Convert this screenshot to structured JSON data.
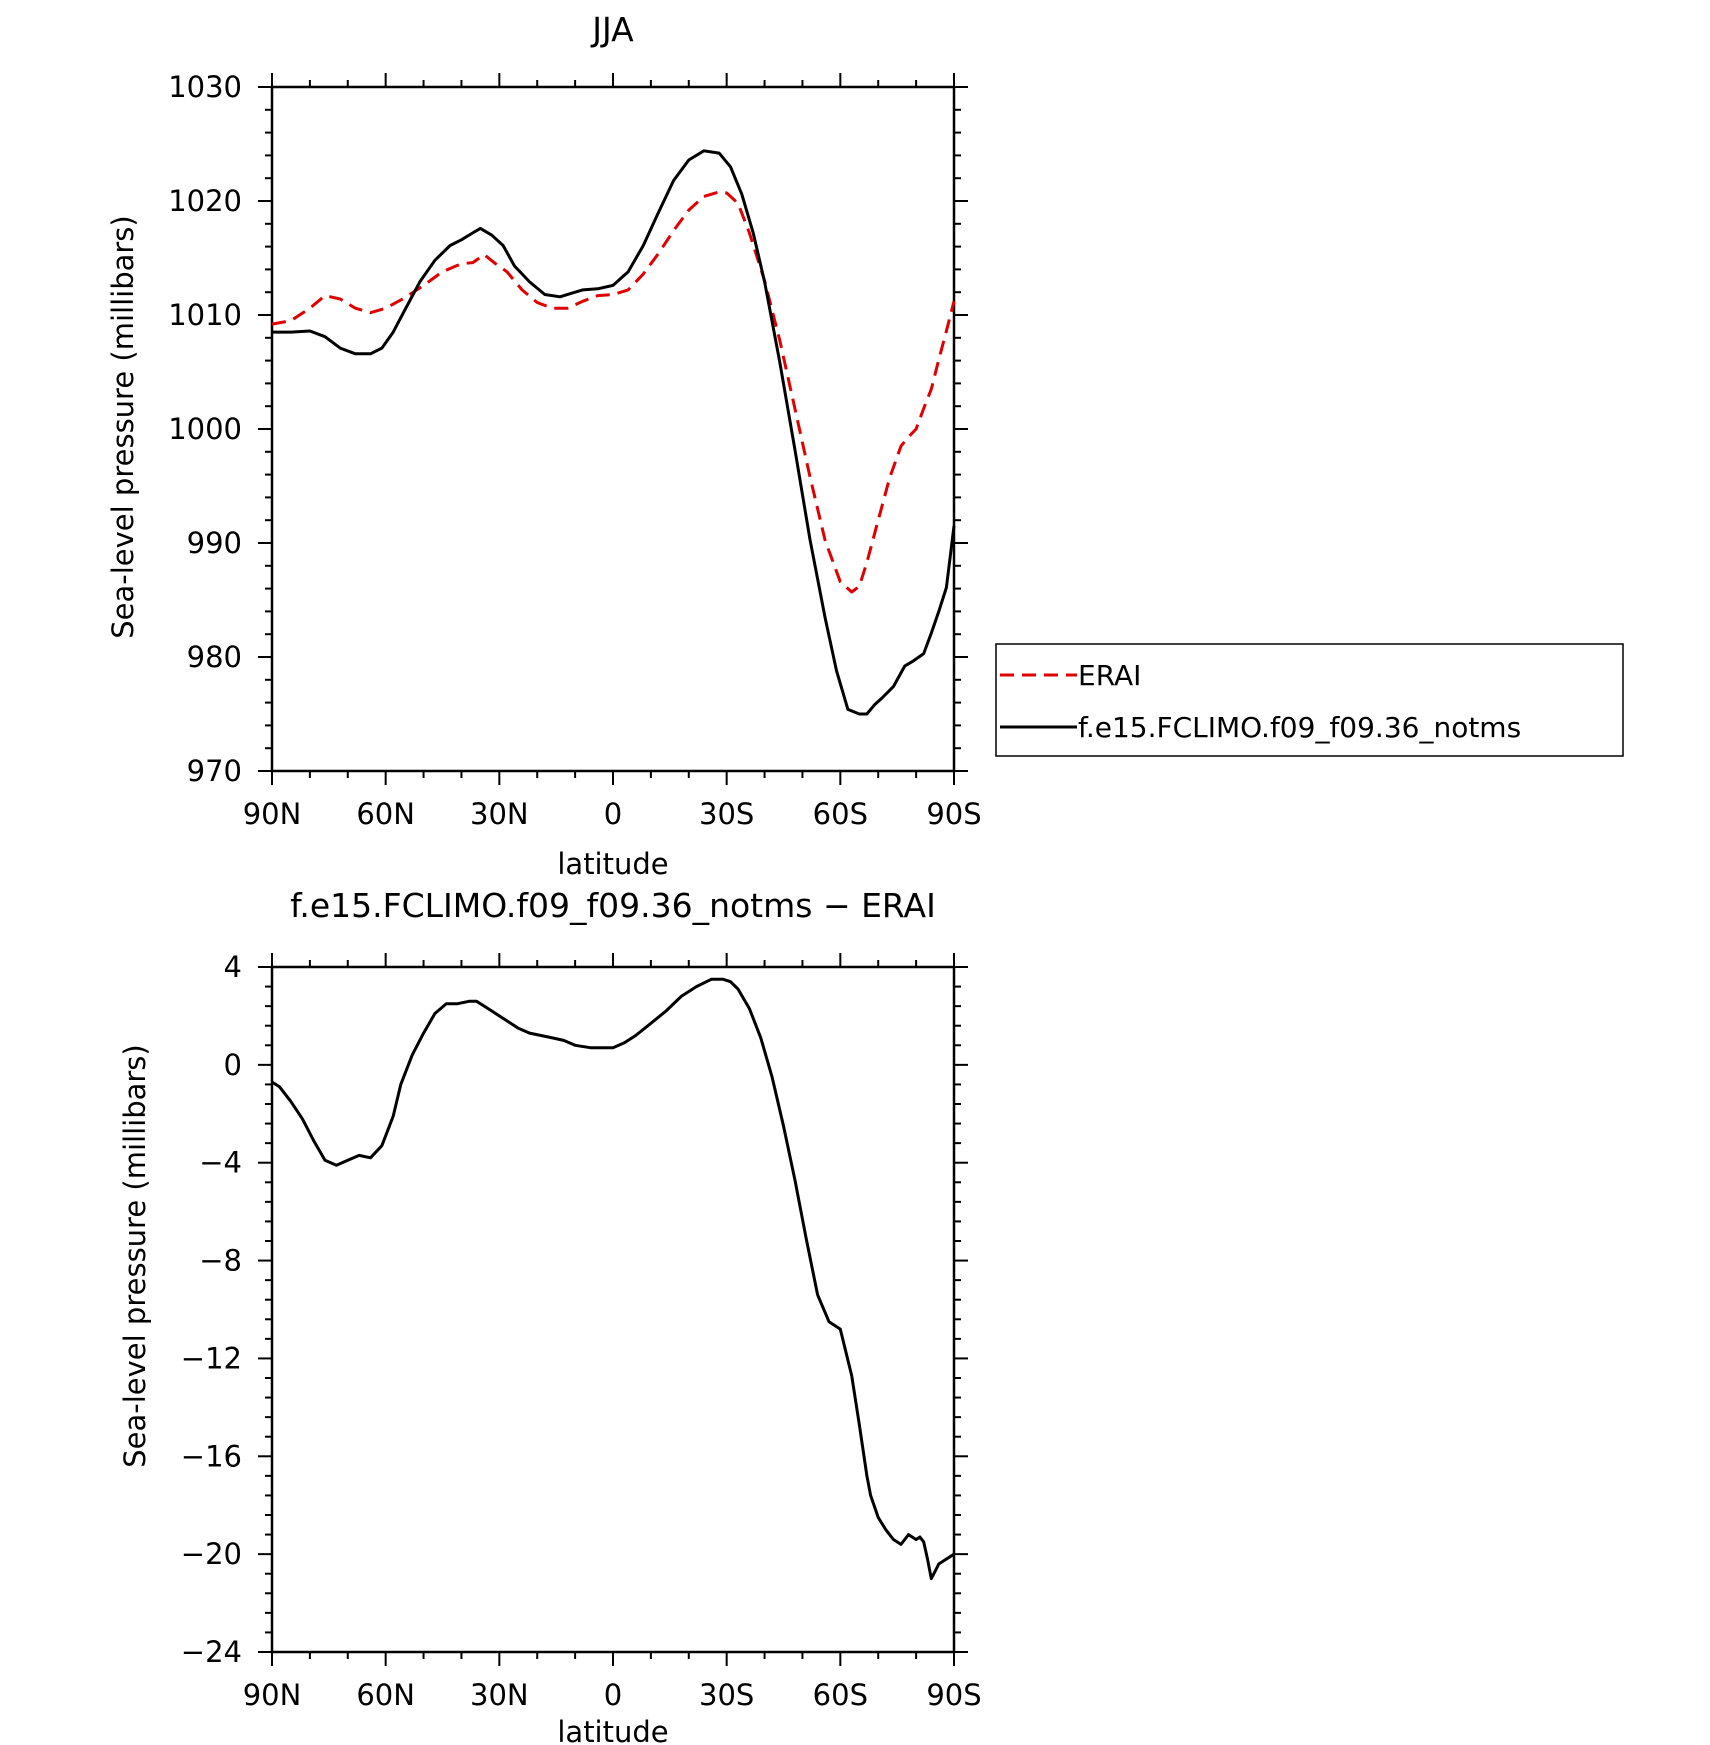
{
  "chart_data": [
    {
      "type": "line",
      "title": "JJA",
      "xlabel": "latitude",
      "ylabel": "Sea-level pressure (millibars)",
      "xlim": [
        90,
        -90
      ],
      "ylim": [
        970,
        1030
      ],
      "xticks": [
        90,
        60,
        30,
        0,
        -30,
        -60,
        -90
      ],
      "xtick_labels": [
        "90N",
        "60N",
        "30N",
        "0",
        "30S",
        "60S",
        "90S"
      ],
      "yticks": [
        970,
        980,
        990,
        1000,
        1010,
        1020,
        1030
      ],
      "ytick_labels": [
        "970",
        "980",
        "990",
        "1000",
        "1010",
        "1020",
        "1030"
      ],
      "legend": "right",
      "series": [
        {
          "name": "ERAI",
          "color": "#e00000",
          "dash": "dashed",
          "x": [
            90,
            85,
            80,
            76,
            72,
            68,
            64,
            60,
            55,
            50,
            45,
            40,
            37,
            34,
            31,
            28,
            24,
            20,
            16,
            12,
            8,
            4,
            0,
            -4,
            -8,
            -12,
            -16,
            -20,
            -24,
            -28,
            -30,
            -33,
            -36,
            -40,
            -44,
            -48,
            -52,
            -56,
            -60,
            -63,
            -65,
            -67,
            -70,
            -73,
            -76,
            -78,
            -80,
            -82,
            -84,
            -86,
            -88,
            -90
          ],
          "y": [
            1009.2,
            1009.5,
            1010.6,
            1011.7,
            1011.4,
            1010.6,
            1010.2,
            1010.6,
            1011.5,
            1012.6,
            1013.8,
            1014.5,
            1014.6,
            1015.3,
            1014.5,
            1013.8,
            1012.2,
            1011.1,
            1010.6,
            1010.6,
            1011.2,
            1011.7,
            1011.8,
            1012.2,
            1013.6,
            1015.4,
            1017.4,
            1019.2,
            1020.4,
            1020.8,
            1020.7,
            1019.8,
            1017.2,
            1013.0,
            1007.8,
            1001.8,
            995.8,
            990.2,
            986.6,
            985.7,
            986.2,
            988.3,
            992.0,
            995.7,
            998.5,
            999.3,
            1000.0,
            1001.8,
            1003.5,
            1006.1,
            1008.6,
            1011.2
          ]
        },
        {
          "name": "f.e15.FCLIMO.f09_f09.36_notms",
          "color": "#000000",
          "dash": "solid",
          "x": [
            90,
            85,
            80,
            76,
            72,
            68,
            64,
            61,
            58,
            55,
            51,
            47,
            43,
            40,
            37,
            35,
            32,
            29,
            26,
            22,
            18,
            14,
            11,
            8,
            4,
            0,
            -4,
            -8,
            -12,
            -16,
            -20,
            -24,
            -28,
            -31,
            -34,
            -37,
            -40,
            -44,
            -48,
            -52,
            -56,
            -59,
            -62,
            -65,
            -67,
            -69,
            -71,
            -74,
            -77,
            -79,
            -82,
            -84,
            -86,
            -88,
            -90
          ],
          "y": [
            1008.5,
            1008.5,
            1008.6,
            1008.1,
            1007.1,
            1006.6,
            1006.6,
            1007.1,
            1008.5,
            1010.4,
            1012.9,
            1014.8,
            1016.1,
            1016.6,
            1017.2,
            1017.6,
            1017.0,
            1016.1,
            1014.3,
            1012.9,
            1011.8,
            1011.6,
            1011.9,
            1012.2,
            1012.3,
            1012.6,
            1013.8,
            1016.1,
            1019.0,
            1021.8,
            1023.6,
            1024.4,
            1024.2,
            1023.0,
            1020.6,
            1017.2,
            1012.9,
            1005.9,
            998.2,
            990.3,
            983.4,
            978.8,
            975.4,
            975.0,
            975.0,
            975.8,
            976.4,
            977.4,
            979.2,
            979.6,
            980.3,
            982.1,
            984.0,
            986.1,
            991.5
          ]
        }
      ]
    },
    {
      "type": "line",
      "title": "f.e15.FCLIMO.f09_f09.36_notms − ERAI",
      "xlabel": "latitude",
      "ylabel": "Sea-level pressure (millibars)",
      "xlim": [
        90,
        -90
      ],
      "ylim": [
        -24,
        4
      ],
      "xticks": [
        90,
        60,
        30,
        0,
        -30,
        -60,
        -90
      ],
      "xtick_labels": [
        "90N",
        "60N",
        "30N",
        "0",
        "30S",
        "60S",
        "90S"
      ],
      "yticks": [
        -24,
        -20,
        -16,
        -12,
        -8,
        -4,
        0,
        4
      ],
      "ytick_labels": [
        "−24",
        "−20",
        "−16",
        "−12",
        "−8",
        "−4",
        "0",
        "4"
      ],
      "series": [
        {
          "color": "#000000",
          "dash": "solid",
          "x": [
            90,
            88,
            85,
            82,
            79,
            76,
            73,
            70,
            67,
            64,
            61,
            58,
            56,
            53,
            50,
            47,
            44,
            41,
            38,
            36,
            34,
            32,
            29,
            27,
            25,
            22,
            19,
            16,
            13,
            10,
            6,
            3,
            0,
            -3,
            -6,
            -10,
            -14,
            -18,
            -22,
            -26,
            -29,
            -31,
            -33,
            -36,
            -39,
            -42,
            -45,
            -48,
            -51,
            -54,
            -57,
            -60,
            -63,
            -65,
            -67,
            -68,
            -70,
            -72,
            -74,
            -76,
            -78,
            -80,
            -81,
            -82,
            -83,
            -84,
            -85,
            -86,
            -87,
            -89,
            -90
          ],
          "y": [
            -0.7,
            -0.9,
            -1.5,
            -2.2,
            -3.1,
            -3.9,
            -4.1,
            -3.9,
            -3.7,
            -3.8,
            -3.3,
            -2.1,
            -0.8,
            0.4,
            1.3,
            2.1,
            2.5,
            2.5,
            2.6,
            2.6,
            2.4,
            2.2,
            1.9,
            1.7,
            1.5,
            1.3,
            1.2,
            1.1,
            1.0,
            0.8,
            0.7,
            0.7,
            0.7,
            0.9,
            1.2,
            1.7,
            2.2,
            2.8,
            3.2,
            3.5,
            3.5,
            3.4,
            3.1,
            2.3,
            1.1,
            -0.5,
            -2.5,
            -4.7,
            -7.1,
            -9.4,
            -10.5,
            -10.8,
            -12.7,
            -14.7,
            -16.8,
            -17.6,
            -18.5,
            -19.0,
            -19.4,
            -19.6,
            -19.2,
            -19.4,
            -19.3,
            -19.5,
            -20.2,
            -21.0,
            -20.7,
            -20.4,
            -20.3,
            -20.1,
            -20.0
          ]
        }
      ]
    }
  ]
}
